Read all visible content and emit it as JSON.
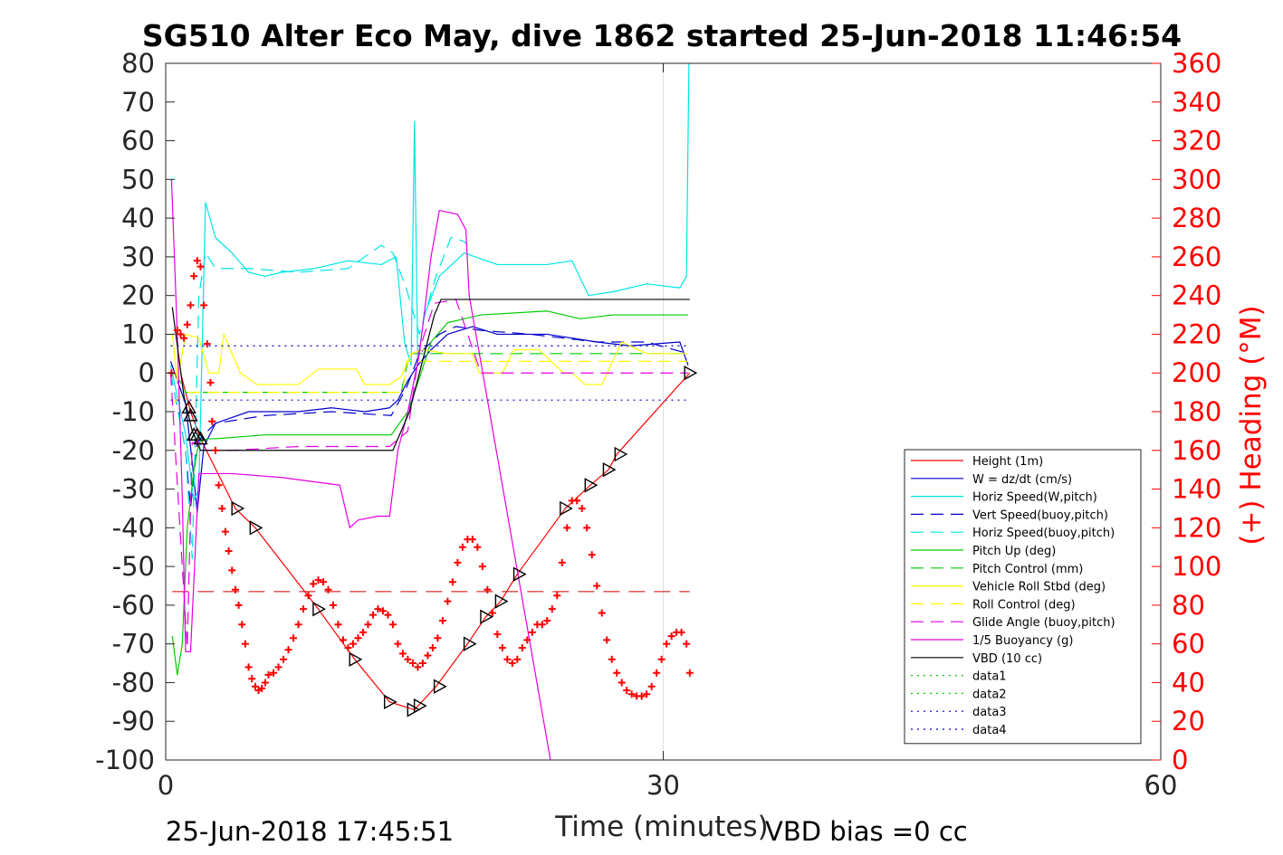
{
  "chart_data": {
    "type": "line",
    "title": "SG510 Alter Eco May, dive 1862 started 25-Jun-2018 11:46:54",
    "xlabel": "Time (minutes)",
    "ylabel": "",
    "ylabel_right": "(+) Heading (°M)",
    "xlim": [
      0,
      60
    ],
    "ylim": [
      -100,
      80
    ],
    "ylim_right": [
      0,
      360
    ],
    "x_ticks": [
      "0",
      "30",
      "60"
    ],
    "y_ticks": [
      "80",
      "70",
      "60",
      "50",
      "40",
      "30",
      "20",
      "10",
      "0",
      "-10",
      "-20",
      "-30",
      "-40",
      "-50",
      "-60",
      "-70",
      "-80",
      "-90",
      "-100"
    ],
    "y_ticks_right": [
      "360",
      "340",
      "320",
      "300",
      "280",
      "260",
      "240",
      "220",
      "200",
      "180",
      "160",
      "140",
      "120",
      "100",
      "80",
      "60",
      "40",
      "20",
      "0"
    ],
    "grid": "x only at 30",
    "legend_position": "bottom-right",
    "footer_left": "25-Jun-2018 17:45:51",
    "footer_right": "VBD bias =0 cc",
    "colors": {
      "red": "#ff0000",
      "blue": "#0000cc",
      "cyan": "#00e5e5",
      "green": "#00cc00",
      "yellow": "#ffff00",
      "magenta": "#e500e5",
      "black": "#000000"
    },
    "series": [
      {
        "name": "Height (1m)",
        "color": "#ff0000",
        "style": "solid",
        "x": [
          0.9,
          1.5,
          2.1,
          4.2,
          5.4,
          9.2,
          11.4,
          13.5,
          15.0,
          16.3,
          18.2,
          19.3,
          20.2,
          21.2,
          24.1,
          25.6,
          26.7,
          27.2,
          31.6
        ],
        "y": [
          0,
          -10,
          -17,
          -35,
          -40,
          -61,
          -74,
          -85,
          -87,
          -81,
          -70,
          -63,
          -59,
          -52,
          -35,
          -29,
          -25,
          -21,
          0
        ]
      },
      {
        "name": "W = dz/dt (cm/s)",
        "color": "#0000cc",
        "style": "solid",
        "x": [
          0.3,
          1.2,
          1.6,
          1.9,
          2.3,
          3,
          5,
          8,
          10,
          12,
          13.5,
          14,
          14.6,
          15.2,
          16,
          17,
          18.5,
          20,
          23,
          26,
          28,
          31,
          31.5
        ],
        "y": [
          3,
          -8,
          -23,
          -36,
          -19,
          -13,
          -10,
          -10,
          -9,
          -10,
          -9,
          -7,
          -2,
          2,
          6,
          10,
          12,
          10,
          10,
          8,
          7,
          8,
          2
        ]
      },
      {
        "name": "Horiz Speed(W,pitch)",
        "color": "#00e5e5",
        "style": "solid",
        "x": [
          0.3,
          1.2,
          1.7,
          2.0,
          2.4,
          3,
          4,
          5,
          6,
          7,
          9,
          11,
          13,
          13.9,
          14.4,
          14.8,
          15.0,
          15.2,
          15.6,
          16.5,
          18,
          20,
          23,
          24.5,
          25.5,
          27,
          29,
          31,
          31.4,
          31.55
        ],
        "y": [
          2,
          -16,
          -33,
          -30,
          44,
          35,
          31,
          26,
          25,
          26,
          27,
          29,
          28,
          30,
          8,
          2,
          65,
          3,
          15,
          25,
          31,
          28,
          28,
          29,
          20,
          21,
          23,
          22,
          25,
          80
        ]
      },
      {
        "name": "Vert Speed(buoy,pitch)",
        "color": "#0000cc",
        "style": "dash",
        "x": [
          0.3,
          1.2,
          1.5,
          1.9,
          2.3,
          3,
          6,
          10,
          13.6,
          14.5,
          15.3,
          16.5,
          17.5,
          19,
          22,
          26,
          29,
          31.5
        ],
        "y": [
          0,
          -20,
          -35,
          -18,
          -16,
          -13,
          -11,
          -10,
          -11,
          -4,
          5,
          10,
          12,
          11,
          10,
          8,
          8,
          5
        ]
      },
      {
        "name": "Horiz Speed(buoy,pitch)",
        "color": "#00e5e5",
        "style": "dash",
        "x": [
          0.3,
          1.2,
          1.6,
          2.0,
          2.4,
          3,
          5,
          8,
          11,
          13,
          13.7,
          14.5,
          15.3,
          16.3,
          17.2,
          18.0,
          18.2
        ],
        "y": [
          0,
          -20,
          -48,
          20,
          31,
          27,
          27,
          26,
          27,
          33,
          31,
          22,
          10,
          25,
          35,
          34,
          33
        ]
      },
      {
        "name": "Pitch Up (deg)",
        "color": "#00cc00",
        "style": "solid",
        "x": [
          0.4,
          0.7,
          1.0,
          1.3,
          1.7,
          2.0,
          2.5,
          3,
          6,
          10,
          13.6,
          14.6,
          15.4,
          16.0,
          17,
          19,
          23,
          25,
          27,
          31.5
        ],
        "y": [
          -68,
          -78,
          -70,
          -40,
          -25,
          -18,
          -17,
          -17,
          -16,
          -16,
          -16,
          -10,
          0,
          8,
          13,
          15,
          16,
          14,
          15,
          15
        ]
      },
      {
        "name": "Pitch Control (mm)",
        "color": "#00cc00",
        "style": "dash",
        "x": [
          0.5,
          1.0,
          1.2,
          14.2,
          14.7,
          31.5
        ],
        "y": [
          0,
          -3,
          -5,
          -5,
          5,
          5
        ]
      },
      {
        "name": "Vehicle Roll Stbd (deg)",
        "color": "#ffff00",
        "style": "solid",
        "x": [
          0.4,
          0.7,
          1.2,
          2.0,
          2.6,
          3.2,
          3.5,
          4.5,
          5.5,
          8,
          9.2,
          9.4,
          11.5,
          12,
          13.5,
          14.2,
          14.8,
          15.5,
          17,
          18.5,
          18.9,
          20.3,
          21,
          22.5,
          24,
          24.5,
          25.3,
          26.3,
          27.5,
          29,
          31.5
        ],
        "y": [
          10,
          -2,
          10,
          9,
          0,
          0,
          10,
          0,
          -3,
          -3,
          1,
          1,
          1,
          -3,
          -3,
          -1,
          5,
          6,
          5,
          5,
          0,
          0,
          6,
          6,
          0,
          0,
          -3,
          -3,
          8,
          5,
          5
        ]
      },
      {
        "name": "Roll Control (deg)",
        "color": "#ffff00",
        "style": "dash",
        "x": [
          0.4,
          1.2,
          14.3,
          14.5,
          31.5
        ],
        "y": [
          -8,
          -5,
          -5,
          3,
          3
        ]
      },
      {
        "name": "Glide Angle (buoy,pitch)",
        "color": "#e500e5",
        "style": "dash",
        "x": [
          0.3,
          1.0,
          1.3,
          1.6,
          2.0,
          2.5,
          4,
          8,
          13.5,
          14.6,
          15.3,
          16.2,
          17.5,
          19,
          31.5
        ],
        "y": [
          0,
          -50,
          -71,
          -18,
          -18,
          -20,
          -20,
          -19,
          -19,
          -15,
          6,
          18,
          19,
          0,
          0
        ]
      },
      {
        "name": "1/5 Buoyancy (g)",
        "color": "#e500e5",
        "style": "solid",
        "x": [
          0.35,
          0.7,
          1.0,
          1.2,
          1.5,
          2.0,
          4,
          7,
          10.5,
          11.1,
          11.6,
          12.8,
          13.5,
          14.0,
          14.6,
          15.3,
          16.0,
          16.5,
          17.6,
          18.1,
          18.3,
          23.2
        ],
        "y": [
          50,
          10,
          -32,
          -72,
          -72,
          -26,
          -26,
          -27,
          -29,
          -40,
          -38,
          -37,
          -37,
          -20,
          -10,
          5,
          30,
          42,
          41,
          37,
          20,
          -100
        ]
      },
      {
        "name": "VBD (10 cc)",
        "color": "#000000",
        "style": "solid",
        "x": [
          0.4,
          1.1,
          1.6,
          2.1,
          13.7,
          14.7,
          15.6,
          16.2,
          16.6,
          31.6
        ],
        "y": [
          17,
          -6,
          -15,
          -20,
          -20,
          -10,
          5,
          15,
          19,
          19
        ]
      },
      {
        "name": "data1",
        "color": "#00cc00",
        "style": "dot",
        "x": [],
        "y": []
      },
      {
        "name": "data2",
        "color": "#00cc00",
        "style": "dot",
        "x": [],
        "y": []
      },
      {
        "name": "data3",
        "color": "#0000cc",
        "style": "dot",
        "x": [
          0.3,
          31.6
        ],
        "y": [
          7,
          7
        ]
      },
      {
        "name": "data4",
        "color": "#0000cc",
        "style": "dot",
        "x": [
          0.3,
          31.6
        ],
        "y": [
          -7,
          -7
        ]
      }
    ],
    "reference_lines": [
      {
        "color": "#cc0000",
        "style": "longdash",
        "x": [
          0.4,
          31.6
        ],
        "y": [
          -56.5,
          -56.5
        ]
      }
    ],
    "heading_markers": {
      "color": "#ff0000",
      "symbol": "+",
      "axis": "right",
      "x": [
        0.35,
        0.7,
        0.9,
        1.1,
        1.3,
        1.5,
        1.7,
        1.9,
        2.1,
        2.3,
        2.5,
        2.7,
        2.8,
        3.0,
        3.2,
        3.4,
        3.6,
        3.8,
        4.0,
        4.2,
        4.4,
        4.6,
        4.8,
        5.0,
        5.2,
        5.4,
        5.6,
        5.8,
        6.0,
        6.2,
        6.5,
        6.8,
        7.1,
        7.4,
        7.7,
        8.0,
        8.3,
        8.6,
        8.9,
        9.2,
        9.5,
        9.8,
        10.1,
        10.4,
        10.7,
        11.0,
        11.3,
        11.6,
        11.9,
        12.2,
        12.5,
        12.8,
        13.1,
        13.4,
        13.7,
        14.0,
        14.3,
        14.6,
        14.9,
        15.2,
        15.5,
        15.8,
        16.1,
        16.4,
        16.7,
        17.0,
        17.3,
        17.6,
        17.9,
        18.2,
        18.5,
        18.8,
        19.1,
        19.4,
        19.7,
        20.0,
        20.3,
        20.6,
        20.9,
        21.2,
        21.5,
        21.8,
        22.1,
        22.4,
        22.7,
        23.0,
        23.3,
        23.6,
        23.9,
        24.2,
        24.5,
        24.8,
        25.1,
        25.4,
        25.7,
        26.0,
        26.3,
        26.6,
        26.9,
        27.2,
        27.5,
        27.8,
        28.1,
        28.4,
        28.7,
        29.0,
        29.3,
        29.6,
        29.9,
        30.2,
        30.5,
        30.8,
        31.1,
        31.4,
        31.6
      ],
      "y": [
        200,
        222,
        220,
        218,
        225,
        235,
        250,
        258,
        255,
        235,
        215,
        195,
        175,
        160,
        142,
        130,
        118,
        108,
        98,
        88,
        80,
        70,
        60,
        48,
        42,
        38,
        36,
        37,
        40,
        44,
        45,
        48,
        52,
        57,
        63,
        70,
        78,
        85,
        91,
        93,
        92,
        88,
        80,
        70,
        62,
        58,
        60,
        63,
        66,
        70,
        75,
        78,
        77,
        75,
        70,
        60,
        55,
        52,
        50,
        48,
        50,
        54,
        58,
        63,
        72,
        82,
        92,
        102,
        110,
        114,
        114,
        110,
        100,
        88,
        76,
        65,
        58,
        52,
        50,
        52,
        58,
        62,
        66,
        70,
        70,
        72,
        78,
        85,
        102,
        120,
        134,
        134,
        130,
        120,
        106,
        90,
        76,
        62,
        52,
        45,
        40,
        36,
        34,
        33,
        33,
        34,
        38,
        45,
        52,
        60,
        64,
        66,
        66,
        60,
        45
      ]
    },
    "triangle_markers": {
      "color": "#000000",
      "axis": "left",
      "x": [
        1.4,
        1.5,
        1.7,
        1.9,
        2.1,
        4.3,
        5.4,
        9.2,
        11.4,
        13.5,
        14.9,
        15.3,
        16.5,
        18.3,
        19.3,
        20.2,
        21.3,
        24.1,
        25.6,
        26.7,
        27.4,
        31.6
      ],
      "y": [
        -9,
        -11,
        -16,
        -16,
        -17,
        -35,
        -40,
        -61,
        -74,
        -85,
        -87,
        -86,
        -81,
        -70,
        -63,
        -59,
        -52,
        -35,
        -29,
        -25,
        -21,
        0
      ],
      "orientation": [
        "up",
        "up",
        "up",
        "up",
        "up",
        "left",
        "left",
        "left",
        "left",
        "left",
        "left",
        "left",
        "left",
        "left",
        "left",
        "left",
        "left",
        "left",
        "left",
        "left",
        "left",
        "left"
      ]
    }
  }
}
